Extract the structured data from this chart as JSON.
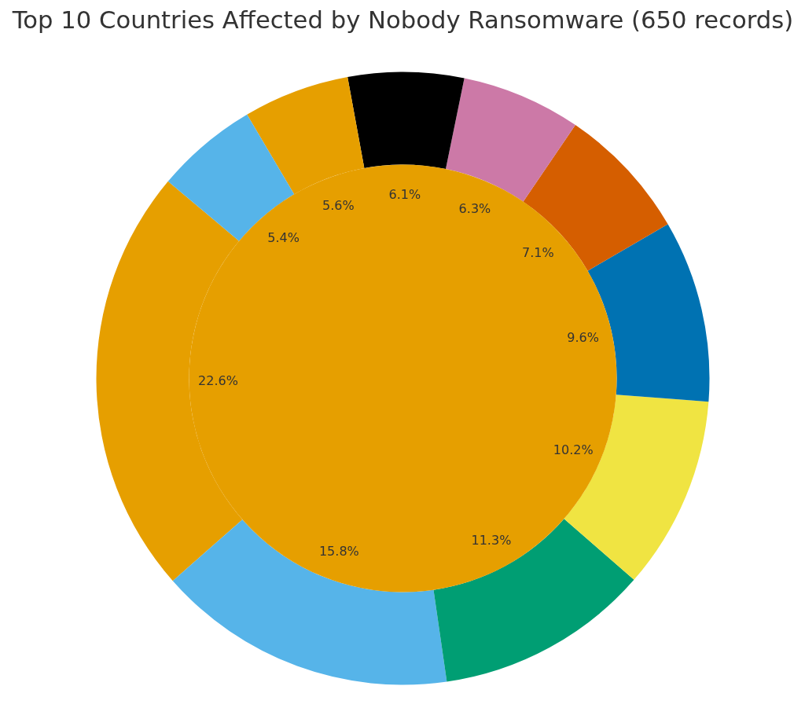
{
  "chart_data": {
    "type": "donut",
    "title": "Top 10 Countries Affected by Nobody Ransomware (650 records)",
    "categories": [
      null,
      null,
      null,
      null,
      null,
      null,
      null,
      null,
      null,
      null
    ],
    "values": [
      22.6,
      15.8,
      11.3,
      10.2,
      9.6,
      7.1,
      6.3,
      6.1,
      5.6,
      5.4
    ],
    "colors": [
      "#e69f00",
      "#56b4e9",
      "#009e73",
      "#f0e442",
      "#0072b2",
      "#d55e00",
      "#cc79a7",
      "#000000",
      "#e69f00",
      "#56b4e9"
    ],
    "value_labels": [
      "22.6%",
      "15.8%",
      "11.3%",
      "10.2%",
      "9.6%",
      "7.1%",
      "6.3%",
      "6.1%",
      "5.6%",
      "5.4%"
    ]
  }
}
